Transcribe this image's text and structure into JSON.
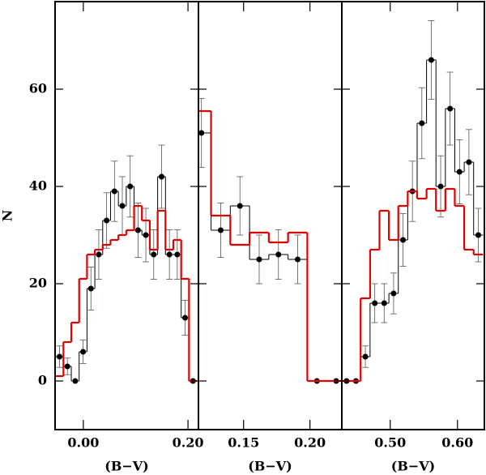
{
  "chart_data": [
    {
      "type": "histogram",
      "ylabel": "N",
      "xlabel": "(B−V)",
      "bins": [
        -0.053,
        -0.038,
        -0.023,
        -0.008,
        0.007,
        0.022,
        0.037,
        0.052,
        0.067,
        0.082,
        0.097,
        0.112,
        0.127,
        0.142,
        0.157,
        0.172,
        0.187,
        0.202,
        0.217
      ],
      "series": [
        {
          "color": "#000000",
          "values": [
            5,
            3,
            0,
            6,
            19,
            26,
            33,
            39,
            36,
            40,
            31,
            30,
            26,
            42,
            26,
            26,
            13,
            0
          ],
          "errors": [
            2.2,
            1.7,
            0,
            2.4,
            4.4,
            5.1,
            5.7,
            6.2,
            6,
            6.3,
            5.6,
            5.5,
            5.1,
            6.5,
            5.1,
            5.1,
            3.6,
            0
          ]
        },
        {
          "color": "#e00000",
          "values": [
            1,
            8,
            12,
            21,
            26,
            27,
            28,
            29,
            30,
            31,
            36,
            33,
            27,
            35,
            27,
            29,
            21,
            0
          ]
        }
      ],
      "xlim": [
        -0.054,
        0.22
      ],
      "xticks": [
        {
          "value": 0,
          "label": "0.00"
        },
        {
          "value": 0.2,
          "label": "0.20"
        }
      ],
      "ylim": [
        -10,
        78
      ],
      "yticks": [
        0,
        20,
        40,
        60
      ]
    },
    {
      "type": "histogram",
      "xlabel": "(B−V)",
      "bins": [
        0.111,
        0.1255,
        0.14,
        0.1545,
        0.169,
        0.1835,
        0.198,
        0.2125,
        0.227
      ],
      "series": [
        {
          "color": "#000000",
          "values": [
            51,
            31,
            36,
            25,
            26,
            25,
            0,
            0
          ],
          "errors": [
            7.1,
            5.6,
            6,
            5,
            5.1,
            5,
            0,
            0
          ]
        },
        {
          "color": "#e00000",
          "values": [
            55.5,
            34,
            28,
            30.5,
            28.5,
            30.5,
            0,
            0
          ]
        }
      ],
      "xlim": [
        0.116,
        0.224
      ],
      "xticks": [
        0.15,
        {
          "value": 0.2,
          "label": "0.20"
        }
      ],
      "ylim": [
        -10,
        78
      ],
      "yticks": [
        0,
        20,
        40,
        60
      ]
    },
    {
      "type": "histogram",
      "xlabel": "(B−V)",
      "bins": [
        0.428,
        0.442,
        0.456,
        0.47,
        0.484,
        0.498,
        0.512,
        0.526,
        0.54,
        0.554,
        0.568,
        0.582,
        0.596,
        0.61,
        0.624,
        0.638
      ],
      "series": [
        {
          "color": "#000000",
          "values": [
            0,
            0,
            5,
            16,
            16,
            18,
            29,
            39,
            53,
            66,
            40,
            56,
            43,
            45,
            30
          ],
          "errors": [
            0,
            0,
            2.2,
            4,
            4,
            4.2,
            5.4,
            6.2,
            7.3,
            8.1,
            6.3,
            7.5,
            6.6,
            6.7,
            5.5
          ]
        },
        {
          "color": "#e00000",
          "values": [
            0,
            0,
            17,
            27,
            35,
            29,
            36,
            39,
            37.5,
            39.5,
            35,
            39.5,
            36,
            27,
            26
          ]
        }
      ],
      "xlim": [
        0.428,
        0.64
      ],
      "xticks": [
        {
          "value": 0.5,
          "label": "0.50"
        },
        {
          "value": 0.6,
          "label": "0.60"
        }
      ],
      "ylim": [
        -10,
        78
      ],
      "yticks": [
        0,
        20,
        40,
        60
      ]
    }
  ]
}
